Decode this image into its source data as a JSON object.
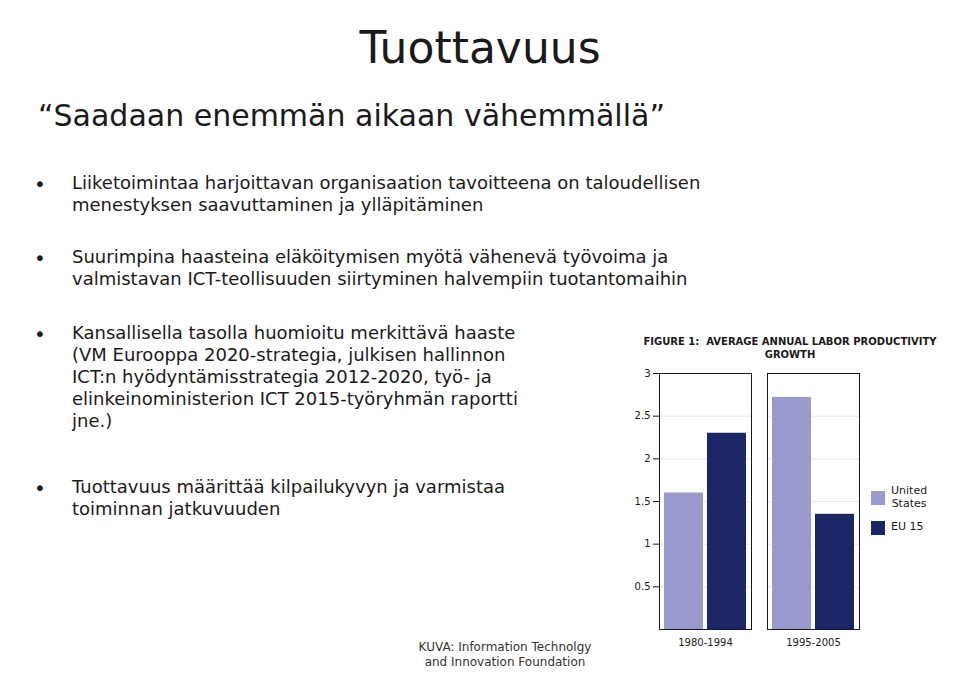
{
  "title": "Tuottavuus",
  "subtitle": "“Saadaan enemmän aikaan vähemmällä”",
  "bullets": [
    "Liiketoimintaa harjoittavan organisaation tavoitteena on taloudellisen\nmenestyksen saavuttaminen ja ylläpitäminen",
    "Suurimpina haasteina eläköitymisen myötä vähenevä työvoima ja\nvalmistavan ICT-teollisuuden siirtyminen halvempiin tuotantomaihin",
    "Kansallisella tasolla huomioitu merkittävä haaste\n(VM Eurooppa 2020-strategia, julkisen hallinnon\nICT:n hyödyntämisstrategia 2012-2020, työ- ja\nelinkeinoministerion ICT 2015-työryhmän raportti\njne.)",
    "Tuottavuus määrittää kilpailukyvyn ja varmistaa\ntoiminnan jatkuvuuden"
  ],
  "caption": "KUVA: Information Technolgy\nand Innovation Foundation",
  "chart_data": {
    "type": "bar",
    "title": "FIGURE 1:  AVERAGE ANNUAL LABOR PRODUCTIVITY GROWTH",
    "categories": [
      "1980-1994",
      "1995-2005"
    ],
    "series": [
      {
        "name": "United\nStates",
        "color": "#9999cc",
        "values": [
          1.6,
          2.72
        ]
      },
      {
        "name": "EU 15",
        "color": "#1a2666",
        "values": [
          2.3,
          1.35
        ]
      }
    ],
    "ylim": [
      0,
      3
    ],
    "yticks": [
      0.5,
      1,
      1.5,
      2,
      2.5,
      3
    ],
    "grid": true,
    "legend": "right"
  }
}
